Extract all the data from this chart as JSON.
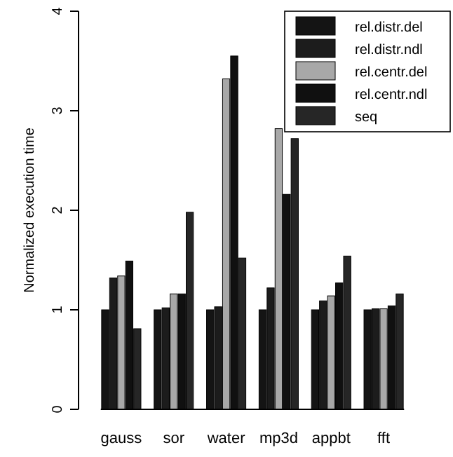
{
  "chart_data": {
    "type": "bar",
    "ylabel": "Normalized execution time",
    "categories": [
      "gauss",
      "sor",
      "water",
      "mp3d",
      "appbt",
      "fft"
    ],
    "series": [
      {
        "name": "rel.distr.del",
        "color": "#141414",
        "values": [
          1.0,
          1.0,
          1.0,
          1.0,
          1.0,
          1.0
        ]
      },
      {
        "name": "rel.distr.ndl",
        "color": "#1c1c1c",
        "values": [
          1.32,
          1.02,
          1.03,
          1.22,
          1.09,
          1.01
        ]
      },
      {
        "name": "rel.centr.del",
        "color": "#a8a8a8",
        "values": [
          1.34,
          1.16,
          3.32,
          2.82,
          1.14,
          1.01
        ]
      },
      {
        "name": "rel.centr.ndl",
        "color": "#101010",
        "values": [
          1.49,
          1.16,
          3.55,
          2.16,
          1.27,
          1.04
        ]
      },
      {
        "name": "seq",
        "color": "#262626",
        "values": [
          0.81,
          1.98,
          1.52,
          2.72,
          1.54,
          1.16
        ]
      }
    ],
    "ylim": [
      0,
      4
    ],
    "yticks": [
      0,
      1,
      2,
      3,
      4
    ],
    "grid": false,
    "legend": "top right"
  }
}
